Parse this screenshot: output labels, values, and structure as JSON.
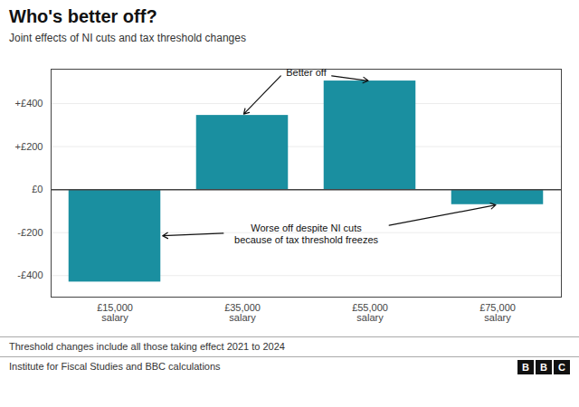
{
  "chart_data": {
    "type": "bar",
    "title": "Who's better off?",
    "subtitle": "Joint effects of NI cuts and tax threshold changes",
    "categories": [
      "£15,000\nsalary",
      "£35,000\nsalary",
      "£55,000\nsalary",
      "£75,000\nsalary"
    ],
    "values": [
      -430,
      345,
      505,
      -70
    ],
    "color": "#1a8fa0",
    "ylim": [
      -500,
      560
    ],
    "yticks": [
      {
        "value": -400,
        "label": "-£400"
      },
      {
        "value": -200,
        "label": "-£200"
      },
      {
        "value": 0,
        "label": "£0"
      },
      {
        "value": 200,
        "label": "+£200"
      },
      {
        "value": 400,
        "label": "+£400"
      }
    ],
    "grid": true,
    "annotations": [
      "Better off",
      "Worse off despite NI cuts\nbecause of tax threshold freezes"
    ],
    "footnotes": [
      "Threshold changes include all those taking effect 2021 to 2024",
      "Institute for Fiscal Studies and BBC calculations"
    ],
    "logo": "BBC"
  }
}
